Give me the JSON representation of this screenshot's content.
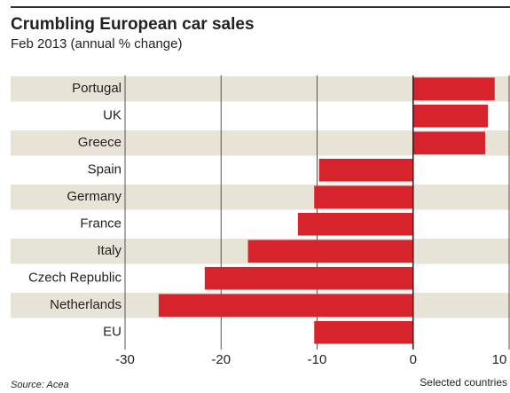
{
  "chart_data": {
    "type": "barh",
    "title": "Crumbling European car sales",
    "subtitle": "Feb 2013  (annual % change)",
    "categories": [
      "Portugal",
      "UK",
      "Greece",
      "Spain",
      "Germany",
      "France",
      "Italy",
      "Czech Republic",
      "Netherlands",
      "EU"
    ],
    "values": [
      8.5,
      7.8,
      7.5,
      -9.8,
      -10.3,
      -12.0,
      -17.2,
      -21.7,
      -26.5,
      -10.3
    ],
    "color": "#d7232b",
    "xlim": [
      -30,
      10
    ],
    "xticks": [
      -30,
      -20,
      -10,
      0,
      10
    ],
    "grid": true,
    "source": "Source: Acea",
    "note": "Selected countries"
  }
}
